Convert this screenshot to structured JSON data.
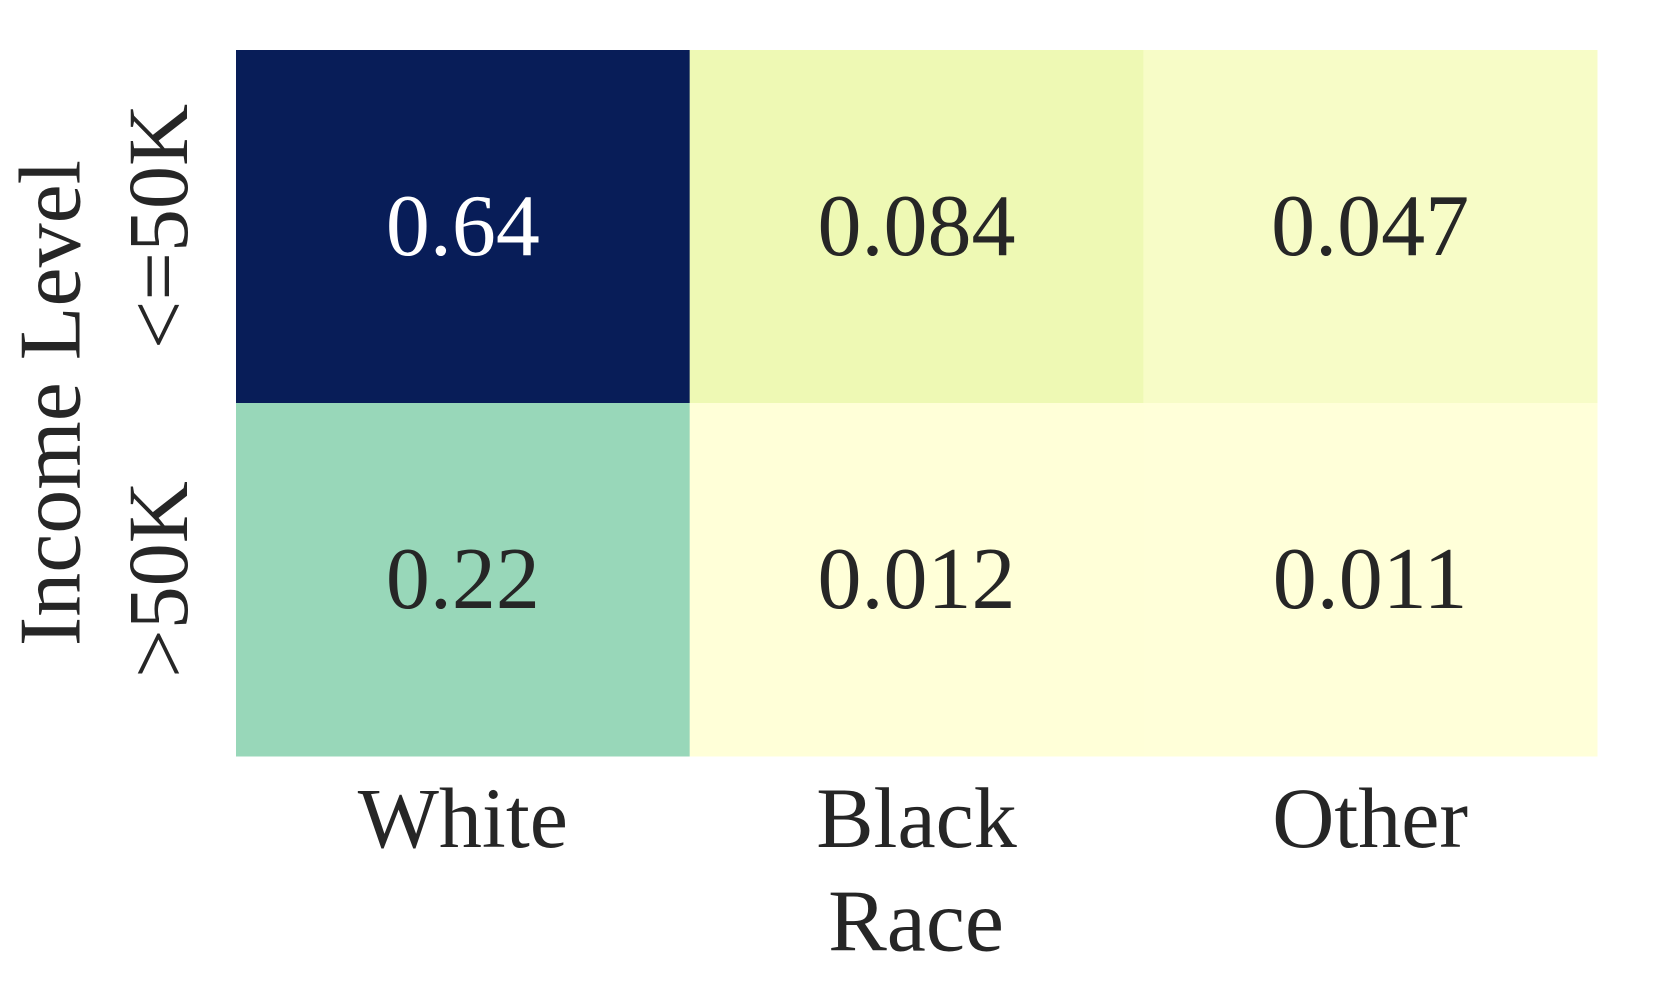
{
  "chart_data": {
    "type": "heatmap",
    "xlabel": "Race",
    "ylabel": "Income Level",
    "x_categories": [
      "White",
      "Black",
      "Other"
    ],
    "y_categories": [
      "<=50K",
      ">50K"
    ],
    "values": [
      [
        0.64,
        0.084,
        0.047
      ],
      [
        0.22,
        0.012,
        0.011
      ]
    ],
    "cmap": "YlGnBu"
  }
}
